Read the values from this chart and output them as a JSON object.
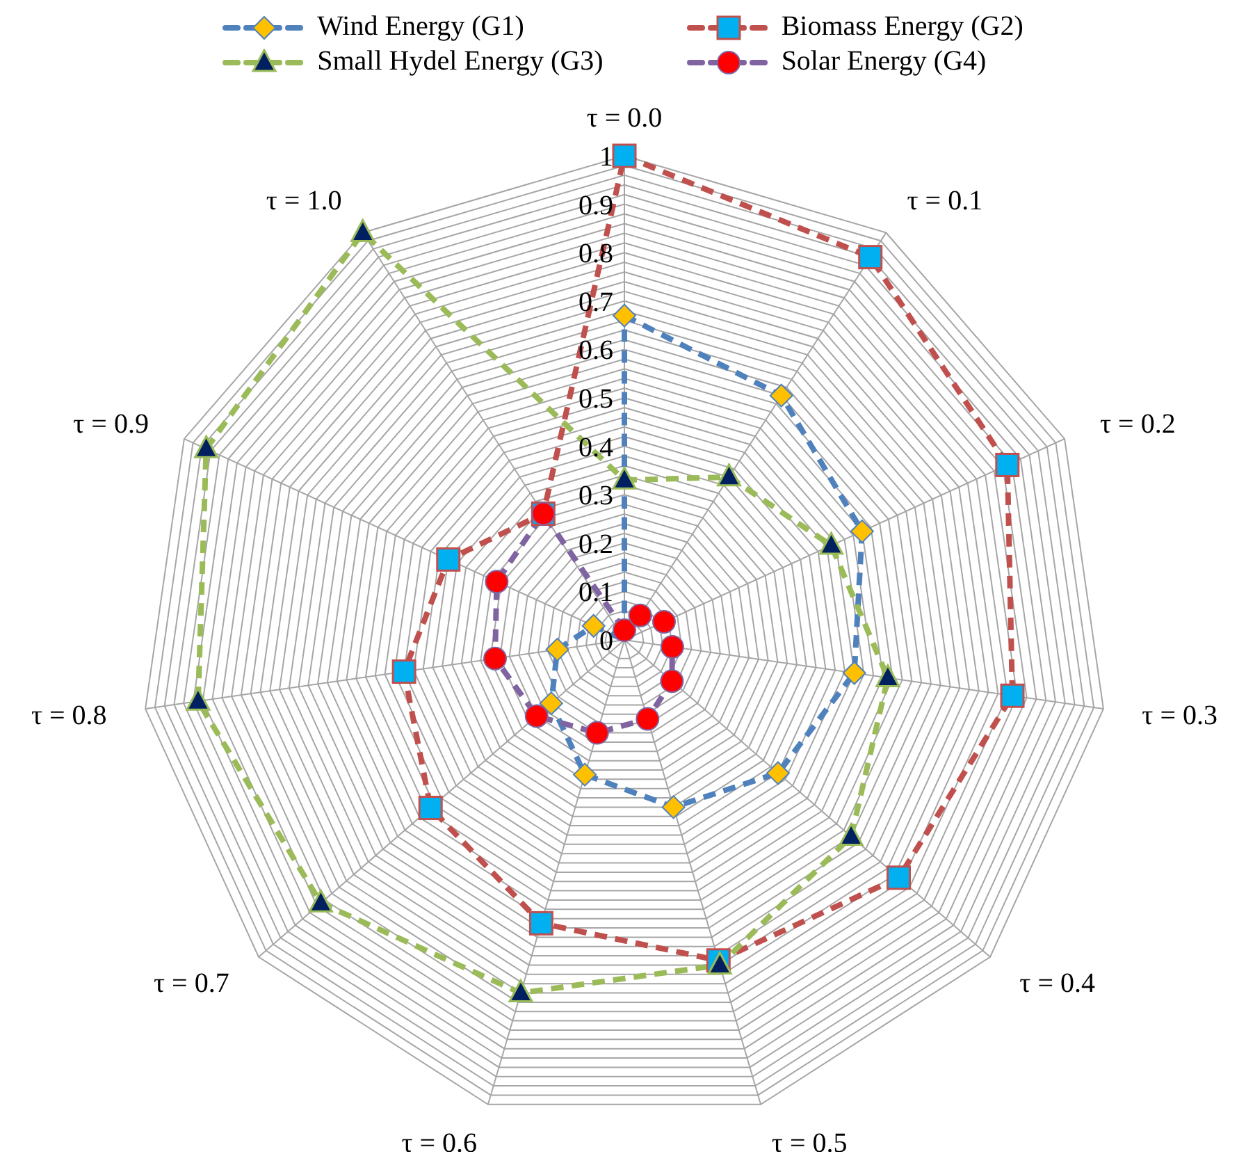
{
  "chart_data": {
    "type": "radar",
    "categories": [
      "τ = 0.0",
      "τ = 0.1",
      "τ = 0.2",
      "τ = 0.3",
      "τ = 0.4",
      "τ = 0.5",
      "τ = 0.6",
      "τ = 0.7",
      "τ = 0.8",
      "τ = 0.9",
      "τ = 1.0"
    ],
    "series": [
      {
        "name": "Wind Energy (G1)",
        "color": "#4f81bd",
        "marker": "diamond",
        "values": [
          0.67,
          0.6,
          0.54,
          0.48,
          0.42,
          0.36,
          0.29,
          0.2,
          0.14,
          0.07,
          null
        ]
      },
      {
        "name": "Biomass Energy (G2)",
        "color": "#c0504d",
        "marker": "square",
        "values": [
          1.0,
          0.94,
          0.87,
          0.81,
          0.75,
          0.69,
          0.61,
          0.53,
          0.46,
          0.4,
          0.31
        ]
      },
      {
        "name": "Small Hydel Energy (G3)",
        "color": "#9bbb59",
        "marker": "triangle",
        "values": [
          0.33,
          0.4,
          0.47,
          0.55,
          0.62,
          0.7,
          0.76,
          0.83,
          0.89,
          0.95,
          1.0
        ]
      },
      {
        "name": "Solar Energy (G4)",
        "color": "#8064a2",
        "marker": "circle",
        "values": [
          0.02,
          0.06,
          0.09,
          0.1,
          0.13,
          0.17,
          0.2,
          0.24,
          0.27,
          0.29,
          0.31
        ]
      }
    ],
    "ylim": [
      0,
      1
    ],
    "yticks": [
      0,
      0.1,
      0.2,
      0.3,
      0.4,
      0.5,
      0.6,
      0.7,
      0.8,
      0.9,
      1
    ],
    "grid": true,
    "legend": "top",
    "line_style": "dashed"
  }
}
